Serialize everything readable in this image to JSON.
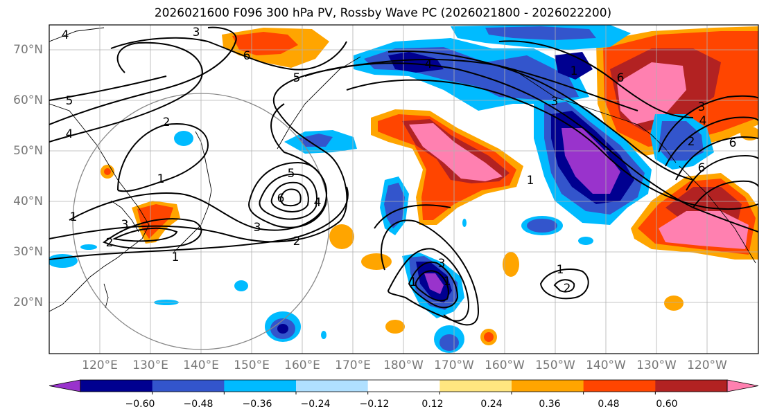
{
  "title": "2026021600 F096 300 hPa PV, Rossby Wave PC (2026021800 - 2026022200)",
  "lat_labels": [
    "70°N",
    "60°N",
    "50°N",
    "40°N",
    "30°N",
    "20°N"
  ],
  "lon_labels": [
    "120°E",
    "130°E",
    "140°E",
    "150°E",
    "160°E",
    "170°E",
    "180°W",
    "170°W",
    "160°W",
    "150°W",
    "140°W",
    "130°W",
    "120°W"
  ],
  "colorbar": {
    "colors": [
      "#9933cc",
      "#000090",
      "#3355cc",
      "#00bbff",
      "#b0e0ff",
      "#ffffff",
      "#ffe680",
      "#ffa500",
      "#ff4500",
      "#b22222",
      "#ff80b0"
    ],
    "tick_labels": [
      "−0.60",
      "−0.48",
      "−0.36",
      "−0.24",
      "−0.12",
      "0.12",
      "0.24",
      "0.36",
      "0.48",
      "0.60"
    ]
  },
  "contour_labels": [
    "4",
    "3",
    "6",
    "5",
    "5",
    "4",
    "2",
    "5",
    "6",
    "4",
    "3",
    "2",
    "1",
    "1",
    "3",
    "1",
    "2",
    "1",
    "3",
    "1",
    "1",
    "2",
    "4",
    "3",
    "6",
    "6",
    "3",
    "4",
    "6",
    "1",
    "1",
    "2"
  ]
}
